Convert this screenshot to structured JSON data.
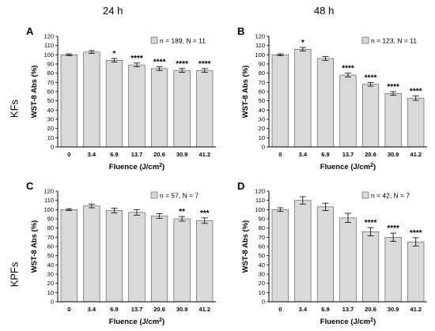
{
  "column_headers": [
    "24 h",
    "48 h"
  ],
  "row_headers": [
    "KFs",
    "KPFs"
  ],
  "colors": {
    "bar": "#d9d9d9",
    "bar_edge": "#4d4d4d",
    "axis": "#000000"
  },
  "chart_data": [
    {
      "panel": "A",
      "type": "bar",
      "categories": [
        "0",
        "3.4",
        "6.9",
        "13.7",
        "20.6",
        "30.9",
        "41.2"
      ],
      "values": [
        100,
        103,
        94,
        89,
        85,
        83,
        83
      ],
      "errors": [
        1,
        1.5,
        2,
        2,
        2,
        2,
        2
      ],
      "annotations": [
        "",
        "",
        "*",
        "****",
        "****",
        "****",
        "****"
      ],
      "legend": "n = 189, N = 11",
      "xlabel": "Fluence (J/cm²)",
      "ylabel": "WST-8 Abs (%)",
      "ylim": [
        0,
        120
      ],
      "yticks": [
        0,
        10,
        20,
        30,
        40,
        50,
        60,
        70,
        80,
        90,
        100,
        110,
        120
      ]
    },
    {
      "panel": "B",
      "type": "bar",
      "categories": [
        "0",
        "3.4",
        "6.9",
        "13.7",
        "20.6",
        "30.9",
        "41.2"
      ],
      "values": [
        100,
        106,
        96,
        78,
        68,
        58,
        53
      ],
      "errors": [
        1,
        2,
        2,
        2,
        2,
        2,
        2.5
      ],
      "annotations": [
        "",
        "*",
        "",
        "****",
        "****",
        "****",
        "****"
      ],
      "legend": "n = 123, N = 11",
      "xlabel": "Fluence (J/cm²)",
      "ylabel": "WST-8 Abs (%)",
      "ylim": [
        0,
        120
      ],
      "yticks": [
        0,
        10,
        20,
        30,
        40,
        50,
        60,
        70,
        80,
        90,
        100,
        110,
        120
      ]
    },
    {
      "panel": "C",
      "type": "bar",
      "categories": [
        "0",
        "3.4",
        "6.9",
        "13.7",
        "20.6",
        "30.9",
        "41.2"
      ],
      "values": [
        100,
        104,
        99,
        97,
        93,
        90,
        88
      ],
      "errors": [
        1,
        2,
        2.5,
        3,
        2.5,
        2.5,
        3
      ],
      "annotations": [
        "",
        "",
        "",
        "",
        "",
        "**",
        "***"
      ],
      "legend": "n = 57, N = 7",
      "xlabel": "Fluence (J/cm²)",
      "ylabel": "WST-8 Abs (%)",
      "ylim": [
        0,
        120
      ],
      "yticks": [
        0,
        10,
        20,
        30,
        40,
        50,
        60,
        70,
        80,
        90,
        100,
        110,
        120
      ]
    },
    {
      "panel": "D",
      "type": "bar",
      "categories": [
        "0",
        "3.4",
        "6.9",
        "13.7",
        "20.6",
        "30.9",
        "41.2"
      ],
      "values": [
        100,
        110,
        103,
        91,
        76,
        70,
        65
      ],
      "errors": [
        2,
        4,
        4,
        5,
        4.5,
        4.5,
        4.5
      ],
      "annotations": [
        "",
        "",
        "",
        "",
        "****",
        "****",
        "****"
      ],
      "legend": "n = 42, N = 7",
      "xlabel": "Fluence (J/cm²)",
      "ylabel": "WST-8 Abs (%)",
      "ylim": [
        0,
        120
      ],
      "yticks": [
        0,
        10,
        20,
        30,
        40,
        50,
        60,
        70,
        80,
        90,
        100,
        110,
        120
      ]
    }
  ]
}
